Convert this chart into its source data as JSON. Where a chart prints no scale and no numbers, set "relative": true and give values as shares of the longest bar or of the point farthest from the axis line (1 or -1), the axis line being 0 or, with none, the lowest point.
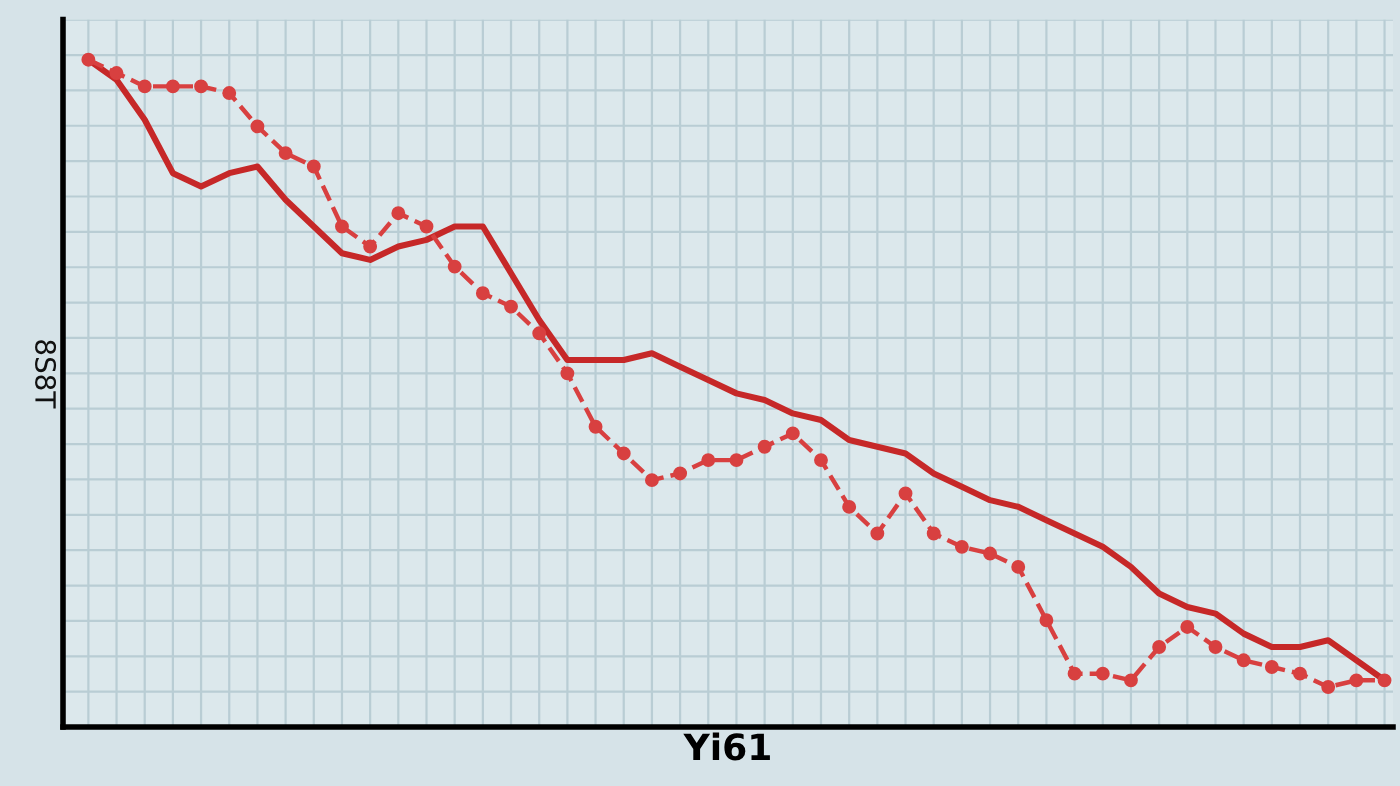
{
  "chart_data": {
    "type": "line",
    "relative": true,
    "xlabel": "Yi61",
    "ylabel": "8S8T",
    "tick_labels": false,
    "grid": true,
    "categories": [
      null,
      null,
      null,
      null,
      null,
      null,
      null,
      null,
      null,
      null,
      null,
      null,
      null,
      null,
      null,
      null,
      null,
      null,
      null,
      null,
      null,
      null,
      null,
      null,
      null,
      null,
      null,
      null,
      null,
      null,
      null,
      null,
      null,
      null,
      null,
      null,
      null,
      null,
      null,
      null,
      null,
      null,
      null,
      null,
      null,
      null,
      null
    ],
    "series": [
      {
        "color": "#c62828",
        "line_style": "solid",
        "marker": "none",
        "values": [
          1.0,
          0.97,
          0.91,
          0.83,
          0.81,
          0.83,
          0.84,
          0.79,
          0.75,
          0.71,
          0.7,
          0.72,
          0.73,
          0.75,
          0.75,
          0.68,
          0.61,
          0.55,
          0.55,
          0.55,
          0.56,
          0.54,
          0.52,
          0.5,
          0.49,
          0.47,
          0.46,
          0.43,
          0.42,
          0.41,
          0.38,
          0.36,
          0.34,
          0.33,
          0.31,
          0.29,
          0.27,
          0.24,
          0.2,
          0.18,
          0.17,
          0.14,
          0.12,
          0.12,
          0.13,
          0.1,
          0.07
        ]
      },
      {
        "color": "#d84040",
        "line_style": "dashed",
        "marker": "circle",
        "values": [
          1.0,
          0.98,
          0.96,
          0.96,
          0.96,
          0.95,
          0.9,
          0.86,
          0.84,
          0.75,
          0.72,
          0.77,
          0.75,
          0.69,
          0.65,
          0.63,
          0.59,
          0.53,
          0.45,
          0.41,
          0.37,
          0.38,
          0.4,
          0.4,
          0.42,
          0.44,
          0.4,
          0.33,
          0.29,
          0.35,
          0.29,
          0.27,
          0.26,
          0.24,
          0.16,
          0.08,
          0.08,
          0.07,
          0.12,
          0.15,
          0.12,
          0.1,
          0.09,
          0.08,
          0.06,
          0.07,
          0.07
        ]
      }
    ]
  }
}
